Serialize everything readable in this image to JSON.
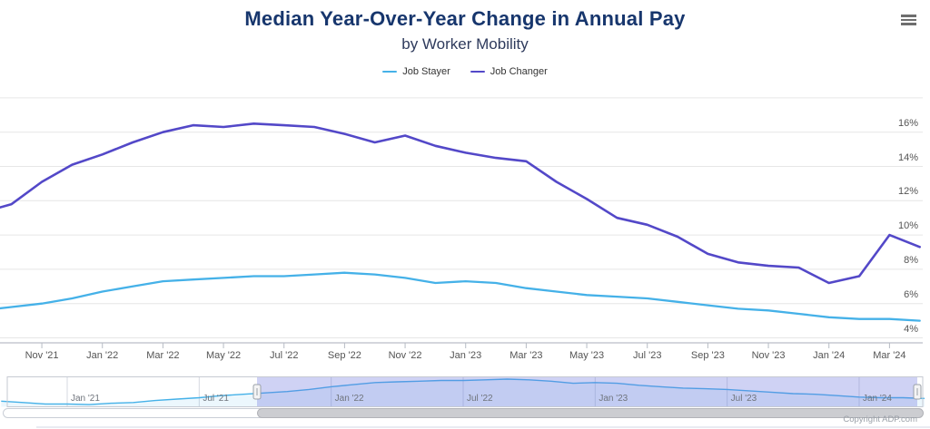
{
  "header": {
    "title": "Median Year-Over-Year Change in Annual Pay",
    "subtitle": "by Worker Mobility"
  },
  "legend": {
    "items": [
      {
        "label": "Job Stayer",
        "color": "#45b1e8"
      },
      {
        "label": "Job Changer",
        "color": "#5348c8"
      }
    ]
  },
  "chart_data": {
    "type": "line",
    "title": "Median Year-Over-Year Change in Annual Pay",
    "subtitle": "by Worker Mobility",
    "legend_position": "top",
    "grid": true,
    "ylim": [
      4,
      18
    ],
    "y_unit": "%",
    "x": [
      "Sep '21",
      "Oct '21",
      "Nov '21",
      "Dec '21",
      "Jan '22",
      "Feb '22",
      "Mar '22",
      "Apr '22",
      "May '22",
      "Jun '22",
      "Jul '22",
      "Aug '22",
      "Sep '22",
      "Oct '22",
      "Nov '22",
      "Dec '22",
      "Jan '23",
      "Feb '23",
      "Mar '23",
      "Apr '23",
      "May '23",
      "Jun '23",
      "Jul '23",
      "Aug '23",
      "Sep '23",
      "Oct '23",
      "Nov '23",
      "Dec '23",
      "Jan '24",
      "Feb '24",
      "Mar '24",
      "Apr '24"
    ],
    "series": [
      {
        "name": "Job Stayer",
        "color": "#45b1e8",
        "width": 2.3,
        "key": "job-stayer",
        "values": [
          5.6,
          5.8,
          6.0,
          6.3,
          6.7,
          7.0,
          7.3,
          7.4,
          7.5,
          7.6,
          7.6,
          7.7,
          7.8,
          7.7,
          7.5,
          7.2,
          7.3,
          7.2,
          6.9,
          6.7,
          6.5,
          6.4,
          6.3,
          6.1,
          5.9,
          5.7,
          5.6,
          5.4,
          5.2,
          5.1,
          5.1,
          5.0
        ]
      },
      {
        "name": "Job Changer",
        "color": "#5348c8",
        "width": 2.6,
        "key": "job-changer",
        "values": [
          11.3,
          11.8,
          13.1,
          14.1,
          14.7,
          15.4,
          16.0,
          16.4,
          16.3,
          16.5,
          16.4,
          16.3,
          15.9,
          15.4,
          15.8,
          15.2,
          14.8,
          14.5,
          14.3,
          13.1,
          12.1,
          11.0,
          10.6,
          9.9,
          8.9,
          8.4,
          8.2,
          8.1,
          7.2,
          7.6,
          10.0,
          9.3
        ]
      }
    ],
    "x_axis": {
      "tick_labels": [
        "Nov '21",
        "Jan '22",
        "Mar '22",
        "May '22",
        "Jul '22",
        "Sep '22",
        "Nov '22",
        "Jan '23",
        "Mar '23",
        "May '23",
        "Jul '23",
        "Sep '23",
        "Nov '23",
        "Jan '24",
        "Mar '24"
      ]
    },
    "y_axis": {
      "tick_labels": [
        "16%",
        "14%",
        "12%",
        "10%",
        "8%",
        "6%",
        "4%"
      ],
      "tick_values": [
        16,
        14,
        12,
        10,
        8,
        6,
        4
      ],
      "gridline_values": [
        18,
        16,
        14,
        12,
        10,
        8,
        6,
        4
      ]
    }
  },
  "navigator": {
    "series_name": "Job Stayer",
    "axis_labels": [
      "Jan '21",
      "Jul '21",
      "Jan '22",
      "Jul '22",
      "Jan '23",
      "Jul '23",
      "Jan '24"
    ],
    "x_start": "Oct '20",
    "x_end": "Apr '24",
    "values": [
      4.6,
      4.4,
      4.2,
      4.2,
      4.1,
      4.3,
      4.4,
      4.7,
      4.9,
      5.1,
      5.4,
      5.6,
      5.8,
      6.0,
      6.3,
      6.7,
      7.0,
      7.3,
      7.4,
      7.5,
      7.6,
      7.6,
      7.7,
      7.8,
      7.7,
      7.5,
      7.2,
      7.3,
      7.2,
      6.9,
      6.7,
      6.5,
      6.4,
      6.3,
      6.1,
      5.9,
      5.7,
      5.6,
      5.4,
      5.2,
      5.1,
      5.1,
      5.0
    ]
  },
  "footer": {
    "copyright": "Copyright ADP.com"
  }
}
